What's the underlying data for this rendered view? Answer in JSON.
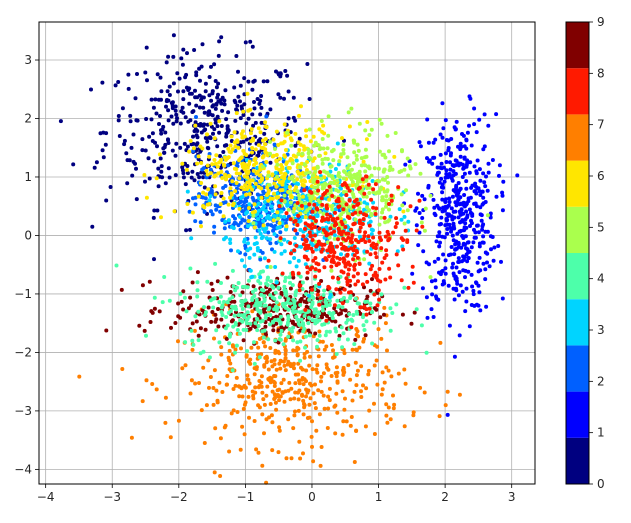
{
  "chart_data": {
    "type": "scatter",
    "title": "",
    "xlabel": "",
    "ylabel": "",
    "xlim": [
      -4.1,
      3.35
    ],
    "ylim": [
      -4.25,
      3.65
    ],
    "xticks": [
      -4,
      -3,
      -2,
      -1,
      0,
      1,
      2,
      3
    ],
    "yticks": [
      -4,
      -3,
      -2,
      -1,
      0,
      1,
      2,
      3
    ],
    "xtick_labels": [
      "−4",
      "−3",
      "−2",
      "−1",
      "0",
      "1",
      "2",
      "3"
    ],
    "ytick_labels": [
      "−4",
      "−3",
      "−2",
      "−1",
      "0",
      "1",
      "2",
      "3"
    ],
    "grid": true,
    "colormap": "jet",
    "colorbar": {
      "ticks": [
        0,
        1,
        2,
        3,
        4,
        5,
        6,
        7,
        8,
        9
      ],
      "tick_labels": [
        "0",
        "1",
        "2",
        "3",
        "4",
        "5",
        "6",
        "7",
        "8",
        "9"
      ],
      "range": [
        0,
        9
      ]
    },
    "classes": [
      {
        "label": 0,
        "color": "#000080",
        "center": [
          -1.6,
          1.8
        ],
        "spread": [
          0.75,
          0.65
        ],
        "count": 450
      },
      {
        "label": 1,
        "color": "#0000ff",
        "center": [
          2.2,
          0.35
        ],
        "spread": [
          0.28,
          0.85
        ],
        "count": 450
      },
      {
        "label": 2,
        "color": "#0060ff",
        "center": [
          -0.85,
          0.6
        ],
        "spread": [
          0.45,
          0.4
        ],
        "count": 380
      },
      {
        "label": 3,
        "color": "#00d4ff",
        "center": [
          -0.1,
          0.35
        ],
        "spread": [
          0.6,
          0.45
        ],
        "count": 380
      },
      {
        "label": 4,
        "color": "#4dffaa",
        "center": [
          -0.4,
          -1.25
        ],
        "spread": [
          0.75,
          0.35
        ],
        "count": 380
      },
      {
        "label": 5,
        "color": "#aaff4d",
        "center": [
          0.5,
          0.8
        ],
        "spread": [
          0.5,
          0.5
        ],
        "count": 360
      },
      {
        "label": 6,
        "color": "#ffe600",
        "center": [
          -0.7,
          1.1
        ],
        "spread": [
          0.65,
          0.4
        ],
        "count": 380
      },
      {
        "label": 7,
        "color": "#ff7f00",
        "center": [
          -0.3,
          -2.5
        ],
        "spread": [
          0.85,
          0.55
        ],
        "count": 450
      },
      {
        "label": 8,
        "color": "#ff1a00",
        "center": [
          0.5,
          -0.1
        ],
        "spread": [
          0.45,
          0.5
        ],
        "count": 360
      },
      {
        "label": 9,
        "color": "#800000",
        "center": [
          -0.6,
          -1.25
        ],
        "spread": [
          0.75,
          0.25
        ],
        "count": 330
      }
    ]
  }
}
